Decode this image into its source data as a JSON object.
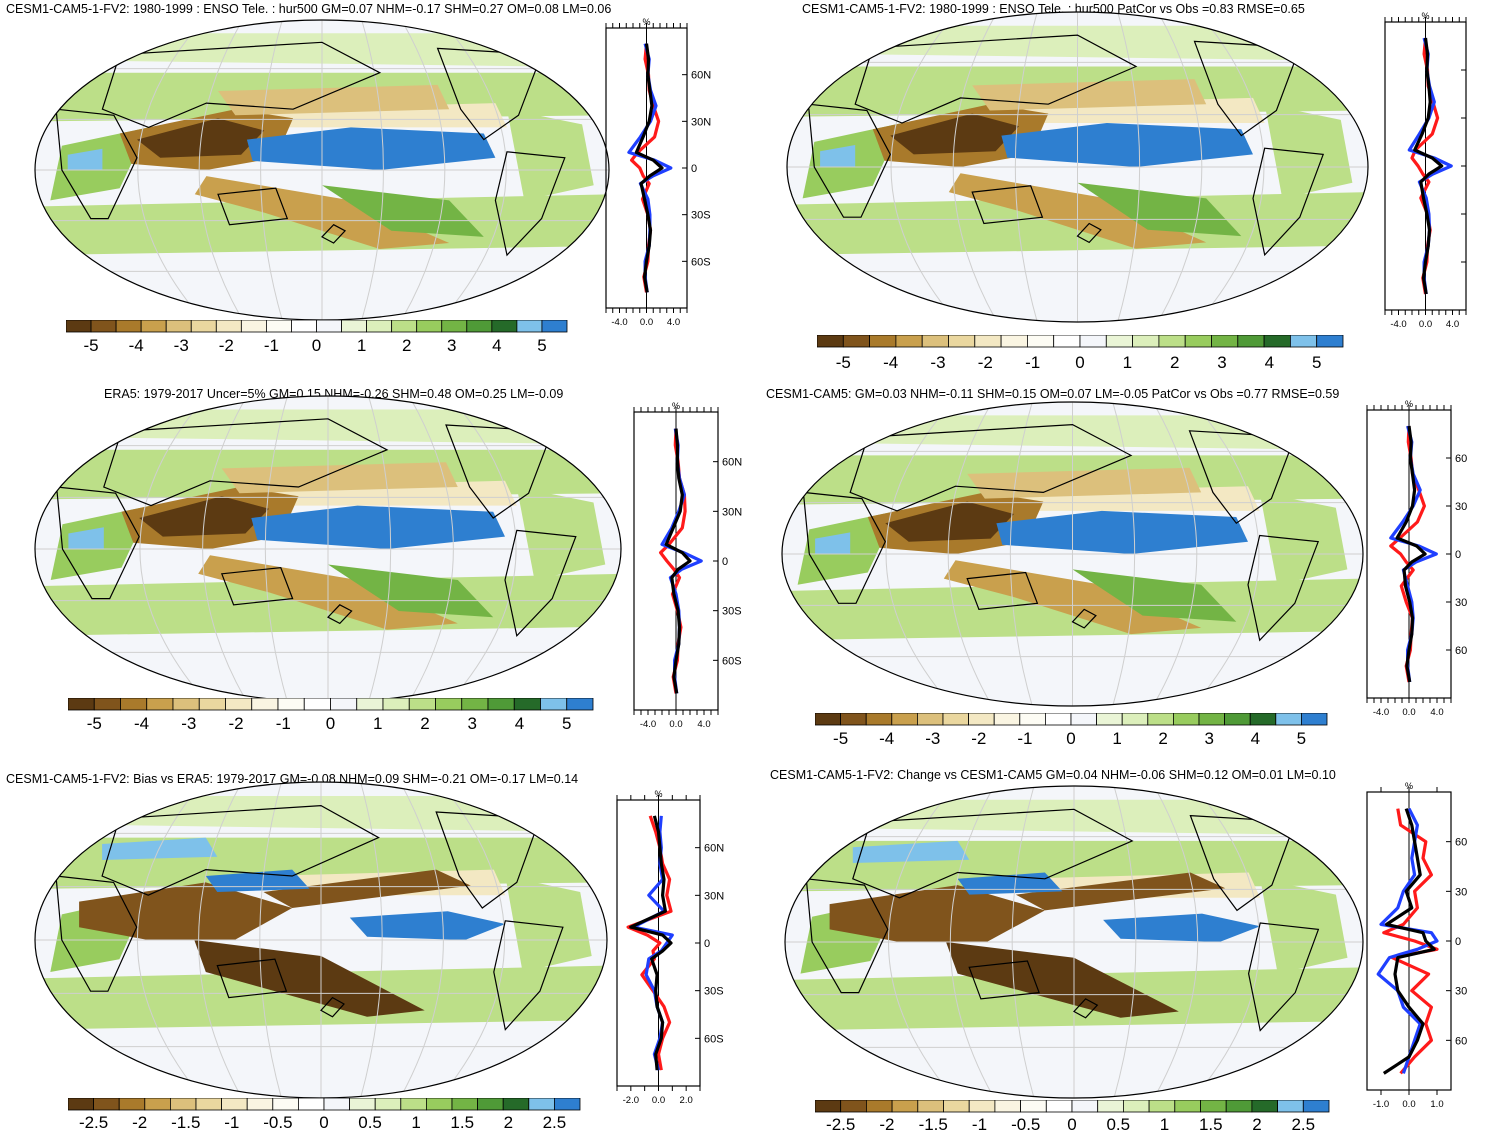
{
  "colors": {
    "scale": [
      "#5c3a12",
      "#80541c",
      "#a97a2b",
      "#c9a04d",
      "#dcc07c",
      "#ead79f",
      "#f3e8c3",
      "#faf5e2",
      "#ffffff",
      "#f4f6fa",
      "#dcefbb",
      "#bcdf88",
      "#98cc5e",
      "#73b445",
      "#4f9a37",
      "#36802e",
      "#256a29",
      "#7ec1ea",
      "#2e7fd0"
    ],
    "ocean_blue": "#2e7fd0",
    "light_blue": "#7ec1ea",
    "profile_black": "#000000",
    "profile_red": "#ff1a1a",
    "profile_blue": "#1f3fff"
  },
  "panels": [
    {
      "title": "CESM1-CAM5-1-FV2: 1980-1999 : ENSO Tele. : hur500 GM=0.07 NHM=-0.17 SHM=0.27 OM=0.08 LM=0.06",
      "colorbar_labels": [
        "-5",
        "-4",
        "-3",
        "-2",
        "-1",
        "0",
        "1",
        "2",
        "3",
        "4",
        "5"
      ],
      "profile_lat_labels": [
        "60N",
        "30N",
        "0",
        "30S",
        "60S"
      ],
      "profile_x_labels": [
        "-4.0",
        "0.0",
        "4.0"
      ],
      "profile_units": "%"
    },
    {
      "title": "CESM1-CAM5-1-FV2: 1980-1999 : ENSO Tele. : hur500 PatCor vs Obs =0.83 RMSE=0.65",
      "colorbar_labels": [
        "-5",
        "-4",
        "-3",
        "-2",
        "-1",
        "0",
        "1",
        "2",
        "3",
        "4",
        "5"
      ],
      "profile_lat_labels": [],
      "profile_x_labels": [
        "-4.0",
        "0.0",
        "4.0"
      ],
      "profile_units": "%"
    },
    {
      "title": "ERA5: 1979-2017 Uncer=5% GM=0.15 NHM=-0.26 SHM=0.48 OM=0.25 LM=-0.09",
      "colorbar_labels": [
        "-5",
        "-4",
        "-3",
        "-2",
        "-1",
        "0",
        "1",
        "2",
        "3",
        "4",
        "5"
      ],
      "profile_lat_labels": [
        "60N",
        "30N",
        "0",
        "30S",
        "60S"
      ],
      "profile_x_labels": [
        "-4.0",
        "0.0",
        "4.0"
      ],
      "profile_units": "%"
    },
    {
      "title": "CESM1-CAM5: GM=0.03 NHM=-0.11 SHM=0.15 OM=0.07 LM=-0.05 PatCor vs Obs =0.77 RMSE=0.59",
      "colorbar_labels": [
        "-5",
        "-4",
        "-3",
        "-2",
        "-1",
        "0",
        "1",
        "2",
        "3",
        "4",
        "5"
      ],
      "profile_lat_labels": [
        "60",
        "30",
        "0",
        "30",
        "60"
      ],
      "profile_x_labels": [
        "-4.0",
        "0.0",
        "4.0"
      ],
      "profile_units": "%"
    },
    {
      "title": "CESM1-CAM5-1-FV2: Bias vs ERA5: 1979-2017 GM=-0.08 NHM=0.09 SHM=-0.21 OM=-0.17 LM=0.14",
      "colorbar_labels": [
        "-2.5",
        "-2",
        "-1.5",
        "-1",
        "-0.5",
        "0",
        "0.5",
        "1",
        "1.5",
        "2",
        "2.5"
      ],
      "profile_lat_labels": [
        "60N",
        "30N",
        "0",
        "30S",
        "60S"
      ],
      "profile_x_labels": [
        "-2.0",
        "0.0",
        "2.0"
      ],
      "profile_units": "%"
    },
    {
      "title": "CESM1-CAM5-1-FV2: Change vs CESM1-CAM5 GM=0.04 NHM=-0.06 SHM=0.12 OM=0.01 LM=0.10",
      "colorbar_labels": [
        "-2.5",
        "-2",
        "-1.5",
        "-1",
        "-0.5",
        "0",
        "0.5",
        "1",
        "1.5",
        "2",
        "2.5"
      ],
      "profile_lat_labels": [
        "60",
        "30",
        "0",
        "30",
        "60"
      ],
      "profile_x_labels": [
        "-1.0",
        "0.0",
        "1.0"
      ],
      "profile_units": "%"
    }
  ],
  "chart_data": [
    {
      "type": "heatmap",
      "title": "CESM1-CAM5-1-FV2: 1980-1999 : ENSO Tele. : hur500 GM=0.07 NHM=-0.17 SHM=0.27 OM=0.08 LM=0.06",
      "colorbar_ticks": [
        -5,
        -4,
        -3,
        -2,
        -1,
        0,
        1,
        2,
        3,
        4,
        5
      ],
      "profile": {
        "ylim": [
          -90,
          90
        ],
        "xlim": [
          -6,
          6
        ],
        "y_ticks": [
          60,
          30,
          0,
          -30,
          -60
        ],
        "lat": [
          80,
          70,
          60,
          50,
          40,
          30,
          20,
          10,
          5,
          0,
          -5,
          -10,
          -20,
          -30,
          -40,
          -50,
          -60,
          -70,
          -80
        ],
        "series": [
          {
            "color": "black",
            "values": [
              0.0,
              0.3,
              0.2,
              0.5,
              0.8,
              0.4,
              -0.5,
              -1.5,
              1.0,
              2.3,
              0.5,
              -0.8,
              -0.3,
              0.2,
              0.6,
              0.4,
              0.0,
              -0.3,
              0.1
            ]
          },
          {
            "color": "red",
            "values": [
              0.0,
              -0.2,
              0.3,
              0.4,
              1.0,
              1.8,
              1.2,
              -1.3,
              -2.2,
              -1.0,
              -0.5,
              0.4,
              -0.6,
              0.2,
              0.6,
              0.3,
              0.2,
              -0.4,
              0.0
            ]
          },
          {
            "color": "blue",
            "values": [
              -0.2,
              0.4,
              0.2,
              0.6,
              1.4,
              0.6,
              -0.9,
              -2.6,
              1.2,
              3.6,
              1.0,
              -0.9,
              0.2,
              0.5,
              0.5,
              0.4,
              -0.2,
              -0.2,
              0.1
            ]
          }
        ]
      }
    },
    {
      "type": "heatmap",
      "title": "CESM1-CAM5-1-FV2: 1980-1999 : ENSO Tele. : hur500 PatCor vs Obs =0.83 RMSE=0.65",
      "colorbar_ticks": [
        -5,
        -4,
        -3,
        -2,
        -1,
        0,
        1,
        2,
        3,
        4,
        5
      ],
      "profile": {
        "ylim": [
          -90,
          90
        ],
        "xlim": [
          -6,
          6
        ],
        "y_ticks": [
          60,
          30,
          0,
          -30,
          -60
        ],
        "lat": [
          80,
          70,
          60,
          50,
          40,
          30,
          20,
          10,
          5,
          0,
          -5,
          -10,
          -20,
          -30,
          -40,
          -50,
          -60,
          -70,
          -80
        ],
        "series": [
          {
            "color": "black",
            "values": [
              0.0,
              0.3,
              0.2,
              0.5,
              0.7,
              0.4,
              -0.5,
              -1.6,
              1.0,
              2.4,
              0.5,
              -0.7,
              -0.3,
              0.2,
              0.6,
              0.4,
              0.0,
              -0.3,
              0.1
            ]
          },
          {
            "color": "red",
            "values": [
              0.0,
              -0.2,
              0.3,
              0.4,
              1.1,
              1.8,
              1.0,
              -1.5,
              -2.0,
              -1.1,
              -0.4,
              0.5,
              -0.7,
              0.3,
              0.7,
              0.3,
              0.2,
              -0.4,
              0.0
            ]
          },
          {
            "color": "blue",
            "values": [
              -0.2,
              0.4,
              0.2,
              0.6,
              1.3,
              0.5,
              -0.9,
              -2.4,
              1.3,
              3.8,
              1.1,
              -0.9,
              0.1,
              0.5,
              0.6,
              0.4,
              -0.2,
              -0.2,
              0.1
            ]
          }
        ]
      }
    },
    {
      "type": "heatmap",
      "title": "ERA5: 1979-2017 Uncer=5% GM=0.15 NHM=-0.26 SHM=0.48 OM=0.25 LM=-0.09",
      "colorbar_ticks": [
        -5,
        -4,
        -3,
        -2,
        -1,
        0,
        1,
        2,
        3,
        4,
        5
      ],
      "profile": {
        "ylim": [
          -90,
          90
        ],
        "xlim": [
          -6,
          6
        ],
        "y_ticks": [
          60,
          30,
          0,
          -30,
          -60
        ],
        "lat": [
          80,
          70,
          60,
          50,
          40,
          30,
          20,
          10,
          5,
          0,
          -5,
          -10,
          -20,
          -30,
          -40,
          -50,
          -60,
          -70,
          -80
        ],
        "series": [
          {
            "color": "black",
            "values": [
              0.0,
              0.2,
              0.2,
              0.4,
              0.9,
              0.6,
              -0.4,
              -1.4,
              0.9,
              2.0,
              0.3,
              -0.6,
              -0.3,
              0.3,
              0.5,
              0.4,
              0.0,
              -0.3,
              0.1
            ]
          },
          {
            "color": "red",
            "values": [
              0.0,
              -0.1,
              0.3,
              0.5,
              1.2,
              1.3,
              0.9,
              -1.0,
              -2.2,
              -1.3,
              -0.3,
              0.5,
              -0.5,
              0.2,
              0.7,
              0.3,
              0.2,
              -0.4,
              0.0
            ]
          },
          {
            "color": "blue",
            "values": [
              -0.1,
              0.3,
              0.2,
              0.5,
              1.2,
              0.4,
              -0.6,
              -2.0,
              1.1,
              3.6,
              0.8,
              -0.8,
              0.0,
              0.4,
              0.5,
              0.4,
              -0.2,
              -0.2,
              0.1
            ]
          }
        ]
      }
    },
    {
      "type": "heatmap",
      "title": "CESM1-CAM5: GM=0.03 NHM=-0.11 SHM=0.15 OM=0.07 LM=-0.05 PatCor vs Obs =0.77 RMSE=0.59",
      "colorbar_ticks": [
        -5,
        -4,
        -3,
        -2,
        -1,
        0,
        1,
        2,
        3,
        4,
        5
      ],
      "profile": {
        "ylim": [
          -90,
          90
        ],
        "xlim": [
          -6,
          6
        ],
        "y_ticks": [
          60,
          30,
          0,
          -30,
          -60
        ],
        "lat": [
          80,
          70,
          60,
          50,
          40,
          30,
          20,
          10,
          5,
          0,
          -5,
          -10,
          -20,
          -30,
          -40,
          -50,
          -60,
          -70,
          -80
        ],
        "series": [
          {
            "color": "black",
            "values": [
              0.0,
              0.3,
              0.2,
              0.5,
              0.8,
              0.5,
              -0.4,
              -1.7,
              1.1,
              2.3,
              0.4,
              -0.7,
              -0.5,
              0.1,
              0.5,
              0.4,
              0.0,
              -0.3,
              0.1
            ]
          },
          {
            "color": "red",
            "values": [
              0.0,
              -0.1,
              0.3,
              0.5,
              1.4,
              2.2,
              1.2,
              -1.3,
              -2.6,
              -1.2,
              -0.4,
              0.6,
              -1.1,
              -0.4,
              0.5,
              0.3,
              0.2,
              -0.4,
              0.0
            ]
          },
          {
            "color": "blue",
            "values": [
              -0.2,
              0.4,
              0.2,
              0.6,
              1.6,
              0.6,
              -0.9,
              -2.6,
              1.4,
              3.9,
              1.0,
              -0.8,
              -0.2,
              0.4,
              0.6,
              0.4,
              -0.2,
              -0.2,
              0.1
            ]
          }
        ]
      }
    },
    {
      "type": "heatmap",
      "title": "CESM1-CAM5-1-FV2: Bias vs ERA5: 1979-2017 GM=-0.08 NHM=0.09 SHM=-0.21 OM=-0.17 LM=0.14",
      "colorbar_ticks": [
        -2.5,
        -2,
        -1.5,
        -1,
        -0.5,
        0,
        0.5,
        1,
        1.5,
        2,
        2.5
      ],
      "profile": {
        "ylim": [
          -90,
          90
        ],
        "xlim": [
          -3,
          3
        ],
        "y_ticks": [
          60,
          30,
          0,
          -30,
          -60
        ],
        "lat": [
          80,
          70,
          60,
          50,
          40,
          30,
          20,
          10,
          5,
          0,
          -5,
          -10,
          -20,
          -30,
          -40,
          -50,
          -60,
          -70,
          -80
        ],
        "series": [
          {
            "color": "black",
            "values": [
              -0.3,
              0.0,
              0.1,
              0.2,
              0.4,
              0.3,
              0.5,
              -2.0,
              0.3,
              0.9,
              0.3,
              -0.5,
              -0.1,
              -0.2,
              -0.1,
              0.3,
              0.2,
              -0.2,
              -0.1
            ]
          },
          {
            "color": "red",
            "values": [
              -0.6,
              -0.2,
              0.1,
              0.3,
              0.8,
              0.6,
              0.9,
              -2.2,
              -0.8,
              0.1,
              -0.4,
              -0.3,
              -1.2,
              -0.4,
              0.4,
              0.8,
              0.3,
              0.0,
              0.2
            ]
          },
          {
            "color": "blue",
            "values": [
              0.2,
              0.1,
              0.2,
              0.1,
              0.3,
              -0.7,
              0.4,
              -1.8,
              1.0,
              0.6,
              0.2,
              -0.7,
              -0.9,
              -0.3,
              -0.1,
              0.3,
              0.1,
              -0.3,
              0.0
            ]
          }
        ]
      }
    },
    {
      "type": "heatmap",
      "title": "CESM1-CAM5-1-FV2: Change vs CESM1-CAM5 GM=0.04 NHM=-0.06 SHM=0.12 OM=0.01 LM=0.10",
      "colorbar_ticks": [
        -2.5,
        -2,
        -1.5,
        -1,
        -0.5,
        0,
        0.5,
        1,
        1.5,
        2,
        2.5
      ],
      "profile": {
        "ylim": [
          -90,
          90
        ],
        "xlim": [
          -1.5,
          1.5
        ],
        "y_ticks": [
          60,
          30,
          0,
          -30,
          -60
        ],
        "lat": [
          80,
          70,
          60,
          50,
          40,
          30,
          20,
          10,
          5,
          0,
          -5,
          -10,
          -20,
          -30,
          -40,
          -50,
          -60,
          -70,
          -80
        ],
        "series": [
          {
            "color": "black",
            "values": [
              -0.1,
              0.1,
              0.2,
              0.3,
              0.4,
              -0.1,
              0.1,
              -0.8,
              0.5,
              0.6,
              0.9,
              -0.4,
              -0.5,
              -0.4,
              0.0,
              0.5,
              0.3,
              0.0,
              -0.9
            ]
          },
          {
            "color": "red",
            "values": [
              -0.4,
              -0.3,
              0.6,
              0.5,
              0.8,
              0.2,
              0.3,
              -0.2,
              -0.9,
              0.2,
              1.0,
              -0.6,
              0.7,
              0.1,
              0.8,
              0.6,
              0.8,
              0.2,
              -0.3
            ]
          },
          {
            "color": "blue",
            "values": [
              0.0,
              0.3,
              0.2,
              0.1,
              0.2,
              -0.2,
              -0.4,
              -1.0,
              0.8,
              1.0,
              0.3,
              -0.7,
              -1.1,
              -0.4,
              -0.2,
              0.4,
              0.2,
              0.0,
              -0.2
            ]
          }
        ]
      }
    }
  ]
}
